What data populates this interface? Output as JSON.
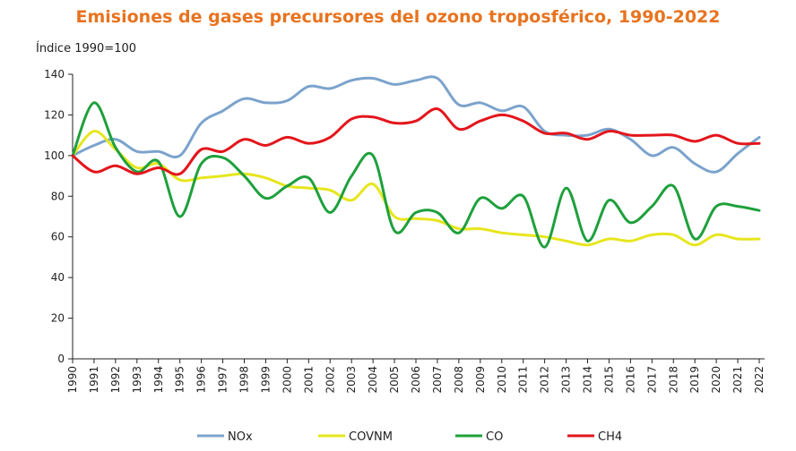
{
  "chart_data": {
    "type": "line",
    "title": "Emisiones de gases precursores del ozono troposférico, 1990-2022",
    "ylabel": "Índice 1990=100",
    "xlabel": "",
    "ylim": [
      0,
      140
    ],
    "yticks": [
      0,
      20,
      40,
      60,
      80,
      100,
      120,
      140
    ],
    "x": [
      "1990",
      "1991",
      "1992",
      "1993",
      "1994",
      "1995",
      "1996",
      "1997",
      "1998",
      "1999",
      "2000",
      "2001",
      "2002",
      "2003",
      "2004",
      "2005",
      "2006",
      "2007",
      "2008",
      "2009",
      "2010",
      "2011",
      "2012",
      "2013",
      "2014",
      "2015",
      "2016",
      "2017",
      "2018",
      "2019",
      "2020",
      "2021",
      "2022"
    ],
    "grid": false,
    "legend": "bottom",
    "series": [
      {
        "name": "NOx",
        "color": "#7BA3CC",
        "values": [
          100,
          105,
          108,
          102,
          102,
          100,
          116,
          122,
          128,
          126,
          127,
          134,
          133,
          137,
          138,
          135,
          137,
          138,
          125,
          126,
          122,
          124,
          112,
          110,
          110,
          113,
          108,
          100,
          104,
          96,
          92,
          101,
          109
        ]
      },
      {
        "name": "COVNM",
        "color": "#E6E61E",
        "values": [
          100,
          112,
          103,
          94,
          96,
          88,
          89,
          90,
          91,
          89,
          85,
          84,
          83,
          78,
          86,
          70,
          69,
          68,
          64,
          64,
          62,
          61,
          60,
          58,
          56,
          59,
          58,
          61,
          61,
          56,
          61,
          59,
          59
        ]
      },
      {
        "name": "CO",
        "color": "#1EA03C",
        "values": [
          100,
          126,
          104,
          92,
          97,
          70,
          96,
          99,
          90,
          79,
          85,
          89,
          72,
          90,
          100,
          63,
          72,
          72,
          62,
          79,
          74,
          80,
          55,
          84,
          58,
          78,
          67,
          75,
          85,
          59,
          75,
          75,
          73
        ]
      },
      {
        "name": "CH4",
        "color": "#E3161C",
        "values": [
          100,
          92,
          95,
          91,
          94,
          91,
          103,
          102,
          108,
          105,
          109,
          106,
          109,
          118,
          119,
          116,
          117,
          123,
          113,
          117,
          120,
          117,
          111,
          111,
          108,
          112,
          110,
          110,
          110,
          107,
          110,
          106,
          106
        ]
      }
    ]
  }
}
